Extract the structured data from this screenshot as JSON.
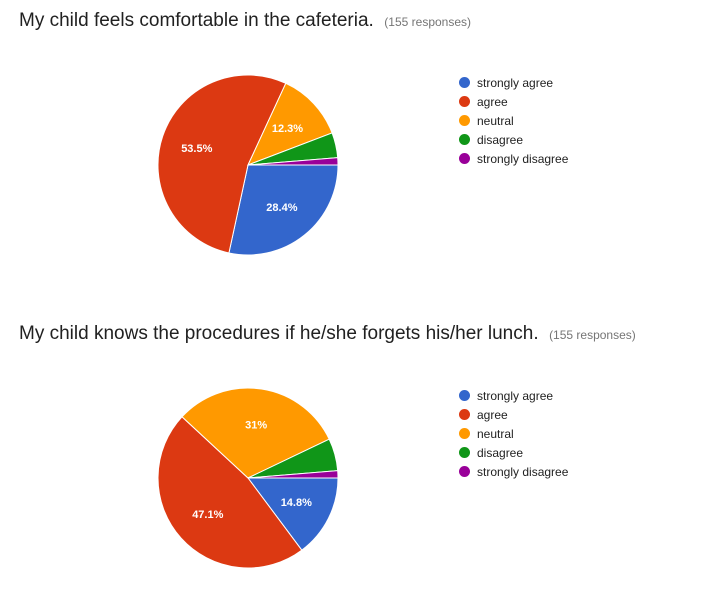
{
  "chart_data": [
    {
      "type": "pie",
      "title": "My child feels comfortable in the cafeteria.",
      "subtitle": "(155 responses)",
      "categories": [
        "strongly agree",
        "agree",
        "neutral",
        "disagree",
        "strongly disagree"
      ],
      "values": [
        28.4,
        53.5,
        12.3,
        4.5,
        1.3
      ],
      "labels": [
        "28.4%",
        "53.5%",
        "12.3%",
        "",
        ""
      ],
      "colors": [
        "#3366cc",
        "#dc3912",
        "#ff9900",
        "#109618",
        "#990099"
      ],
      "legend": "right"
    },
    {
      "type": "pie",
      "title": "My child knows the procedures if he/she forgets his/her lunch.",
      "subtitle": "(155 responses)",
      "categories": [
        "strongly agree",
        "agree",
        "neutral",
        "disagree",
        "strongly disagree"
      ],
      "values": [
        14.8,
        47.1,
        31,
        5.8,
        1.3
      ],
      "labels": [
        "14.8%",
        "47.1%",
        "31%",
        "",
        ""
      ],
      "colors": [
        "#3366cc",
        "#dc3912",
        "#ff9900",
        "#109618",
        "#990099"
      ],
      "legend": "right"
    }
  ]
}
